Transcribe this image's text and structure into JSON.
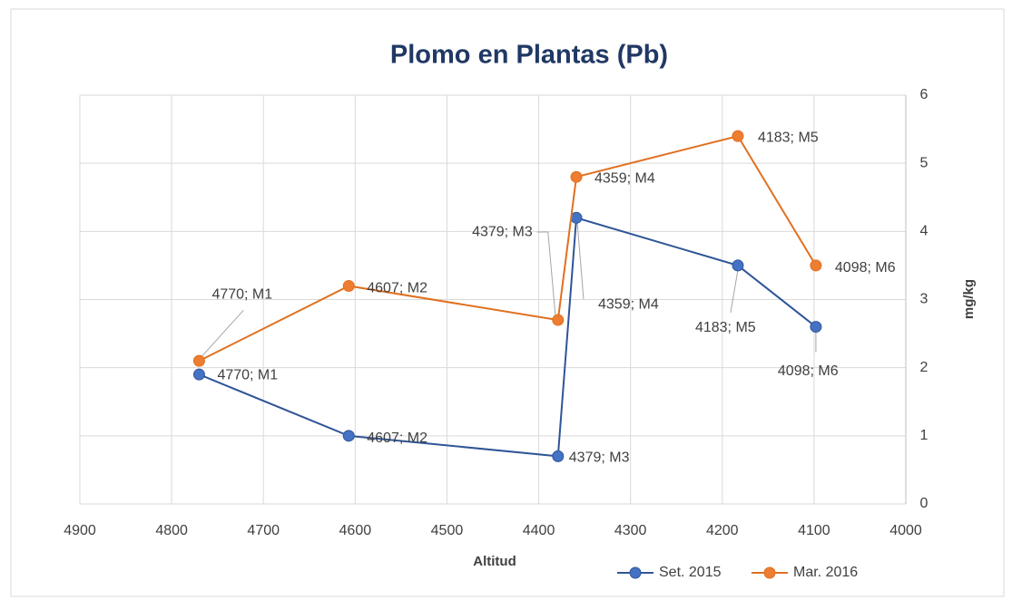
{
  "chart_data": {
    "type": "line",
    "title": "Plomo en Plantas (Pb)",
    "x_label": "Altitud",
    "y_label": "mg/kg",
    "xlim": [
      4900,
      4000
    ],
    "xticks": [
      4900,
      4800,
      4700,
      4600,
      4500,
      4400,
      4300,
      4200,
      4100,
      4000
    ],
    "ylim": [
      0,
      6
    ],
    "yticks": [
      0,
      1,
      2,
      3,
      4,
      5,
      6
    ],
    "y_axis_side": "right",
    "grid": true,
    "legend": "bottom",
    "series": [
      {
        "name": "Set. 2015",
        "color": "#4472c4",
        "line_color": "#2f5597",
        "x": [
          4770,
          4607,
          4379,
          4359,
          4183,
          4098
        ],
        "values": [
          1.9,
          1.0,
          0.7,
          4.2,
          3.5,
          2.6
        ],
        "labels": [
          "4770; M1",
          "4607; M2",
          "4379; M3",
          "4359; M4",
          "4183; M5",
          "4098; M6"
        ]
      },
      {
        "name": "Mar. 2016",
        "color": "#ed7d31",
        "line_color": "#e07020",
        "x": [
          4770,
          4607,
          4379,
          4359,
          4183,
          4098
        ],
        "values": [
          2.1,
          3.2,
          2.7,
          4.8,
          5.4,
          3.5
        ],
        "labels": [
          "4770; M1",
          "4607; M2",
          "4379; M3",
          "4359; M4",
          "4183; M5",
          "4098; M6"
        ]
      }
    ]
  }
}
